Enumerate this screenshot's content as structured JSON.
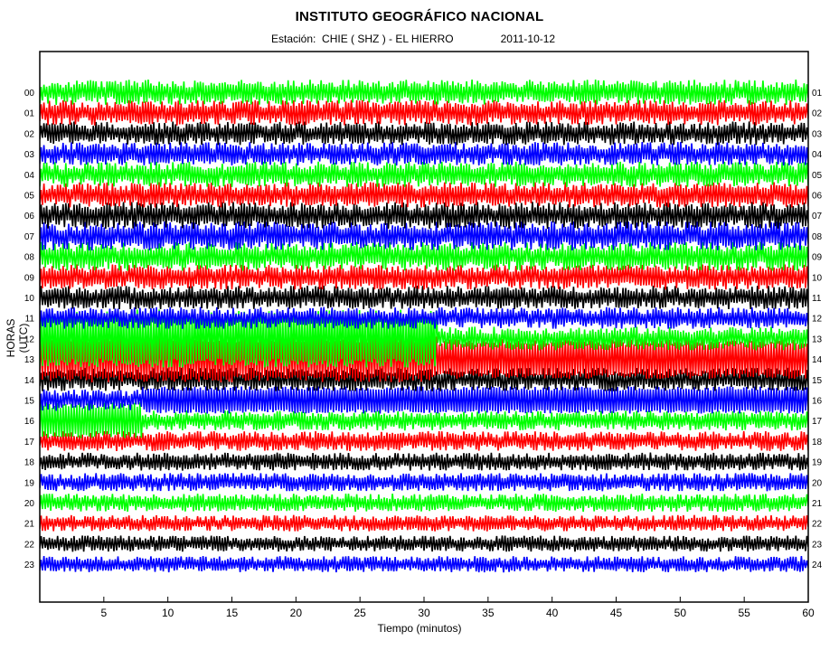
{
  "chart_data": {
    "type": "line",
    "title": "INSTITUTO GEOGRÁFICO NACIONAL",
    "station_label": "Estación:",
    "station": "CHIE ( SHZ ) - EL HIERRO",
    "date": "2011-10-12",
    "xlabel": "Tiempo (minutos)",
    "ylabel": "HORAS (UTC)",
    "xlim": [
      0,
      60
    ],
    "xticks": [
      "5",
      "10",
      "15",
      "20",
      "25",
      "30",
      "35",
      "40",
      "45",
      "50",
      "55",
      "60"
    ],
    "left_hour_labels": [
      "00",
      "01",
      "02",
      "03",
      "04",
      "05",
      "06",
      "07",
      "08",
      "09",
      "10",
      "11",
      "12",
      "13",
      "14",
      "15",
      "16",
      "17",
      "18",
      "19",
      "20",
      "21",
      "22",
      "23"
    ],
    "right_hour_labels": [
      "01",
      "02",
      "03",
      "04",
      "05",
      "06",
      "07",
      "08",
      "09",
      "10",
      "11",
      "12",
      "13",
      "14",
      "15",
      "16",
      "17",
      "18",
      "19",
      "20",
      "21",
      "22",
      "23",
      "24"
    ],
    "trace_color_cycle": [
      "#00ff00",
      "#ff0000",
      "#000000",
      "#0000ff"
    ],
    "grid": false,
    "legend": "none"
  }
}
